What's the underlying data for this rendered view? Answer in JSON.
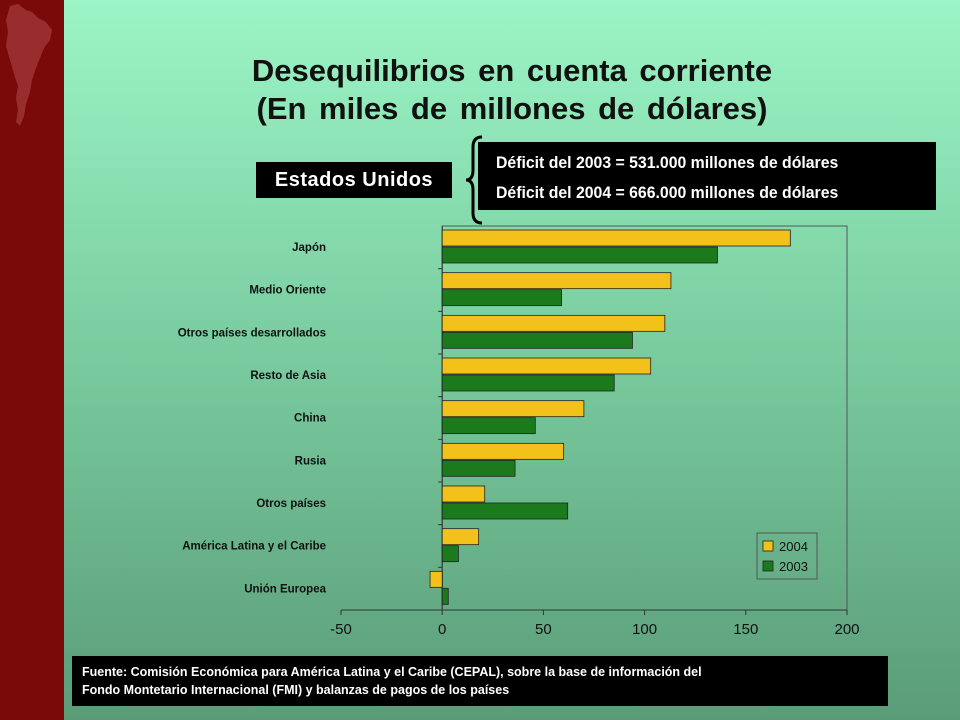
{
  "slide": {
    "title_line1": "Desequilibrios en cuenta corriente",
    "title_line2": "(En miles de millones de dólares)",
    "country_box": "Estados Unidos",
    "deficit_2003": "Déficit del 2003 = 531.000 millones de dólares",
    "deficit_2004": "Déficit del 2004 = 666.000 millones de dólares",
    "source_line1": "Fuente: Comisión Económica para América Latina y el Caribe (CEPAL), sobre la base de información del",
    "source_line2": " Fondo Montetario Internacional (FMI) y balanzas de pagos de los países"
  },
  "colors": {
    "background_top": "#9cf5c6",
    "background_bottom": "#5a9c78",
    "sidebar": "#7a0a0a",
    "series_2004": "#f2c21a",
    "series_2003": "#1b7a1b",
    "box": "#000000",
    "box_text": "#ffffff"
  },
  "icons": {
    "sidebar_map": "south-america-map-icon",
    "brace": "curly-brace-icon"
  },
  "chart_data": {
    "type": "bar",
    "orientation": "horizontal",
    "categories": [
      "Japón",
      "Medio Oriente",
      "Otros países desarrollados",
      "Resto de Asia",
      "China",
      "Rusia",
      "Otros países ",
      "América Latina y el Caribe",
      "Unión Europea"
    ],
    "series": [
      {
        "name": "2004",
        "color": "#f2c21a",
        "values": [
          172,
          113,
          110,
          103,
          70,
          60,
          21,
          18,
          -6
        ]
      },
      {
        "name": "2003",
        "color": "#1b7a1b",
        "values": [
          136,
          59,
          94,
          85,
          46,
          36,
          62,
          8,
          3
        ]
      }
    ],
    "xlim": [
      -50,
      200
    ],
    "xticks": [
      -50,
      0,
      50,
      100,
      150,
      200
    ],
    "grid": false,
    "legend_position": "bottom-right"
  }
}
